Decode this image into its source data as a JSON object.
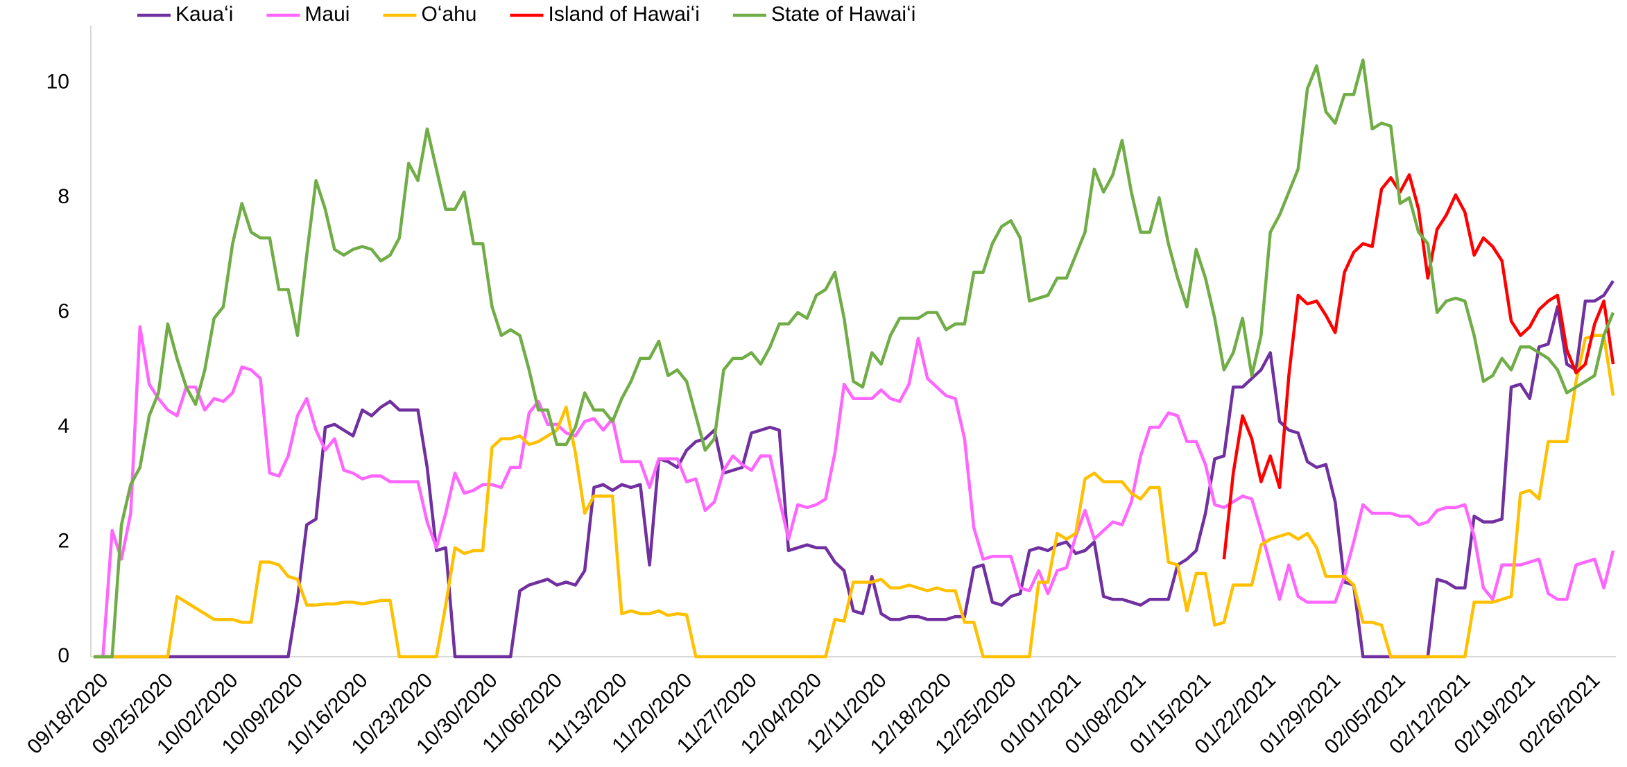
{
  "chart_data": {
    "type": "line",
    "categories": [
      "09/18/2020",
      null,
      null,
      null,
      null,
      null,
      null,
      "09/25/2020",
      null,
      null,
      null,
      null,
      null,
      null,
      "10/02/2020",
      null,
      null,
      null,
      null,
      null,
      null,
      "10/09/2020",
      null,
      null,
      null,
      null,
      null,
      null,
      "10/16/2020",
      null,
      null,
      null,
      null,
      null,
      null,
      "10/23/2020",
      null,
      null,
      null,
      null,
      null,
      null,
      "10/30/2020",
      null,
      null,
      null,
      null,
      null,
      null,
      "11/06/2020",
      null,
      null,
      null,
      null,
      null,
      null,
      "11/13/2020",
      null,
      null,
      null,
      null,
      null,
      null,
      "11/20/2020",
      null,
      null,
      null,
      null,
      null,
      null,
      "11/27/2020",
      null,
      null,
      null,
      null,
      null,
      null,
      "12/04/2020",
      null,
      null,
      null,
      null,
      null,
      null,
      "12/11/2020",
      null,
      null,
      null,
      null,
      null,
      null,
      "12/18/2020",
      null,
      null,
      null,
      null,
      null,
      null,
      "12/25/2020",
      null,
      null,
      null,
      null,
      null,
      null,
      "01/01/2021",
      null,
      null,
      null,
      null,
      null,
      null,
      "01/08/2021",
      null,
      null,
      null,
      null,
      null,
      null,
      "01/15/2021",
      null,
      null,
      null,
      null,
      null,
      null,
      "01/22/2021",
      null,
      null,
      null,
      null,
      null,
      null,
      "01/29/2021",
      null,
      null,
      null,
      null,
      null,
      null,
      "02/05/2021",
      null,
      null,
      null,
      null,
      null,
      null,
      "02/12/2021",
      null,
      null,
      null,
      null,
      null,
      null,
      "02/19/2021",
      null,
      null,
      null,
      null,
      null,
      null,
      "02/26/2021",
      null,
      null,
      null
    ],
    "series": [
      {
        "name": "Kauaʻi",
        "color": "#7030a0",
        "values": [
          0,
          0,
          0,
          0,
          0,
          0,
          0,
          0,
          0,
          0,
          0,
          0,
          0,
          0,
          0,
          0,
          0,
          0,
          0,
          0,
          0,
          0,
          1.0,
          2.3,
          2.4,
          4.0,
          4.05,
          3.95,
          3.85,
          4.3,
          4.2,
          4.35,
          4.45,
          4.3,
          4.3,
          4.3,
          3.3,
          1.85,
          1.9,
          0,
          0,
          0,
          0,
          0,
          0,
          0,
          1.15,
          1.25,
          1.3,
          1.35,
          1.25,
          1.3,
          1.25,
          1.5,
          2.95,
          3.0,
          2.9,
          3.0,
          2.95,
          3.0,
          1.6,
          3.45,
          3.4,
          3.3,
          3.6,
          3.75,
          3.8,
          3.95,
          3.2,
          3.25,
          3.3,
          3.9,
          3.95,
          4.0,
          3.95,
          1.85,
          1.9,
          1.95,
          1.9,
          1.9,
          1.65,
          1.5,
          0.8,
          0.75,
          1.4,
          0.75,
          0.65,
          0.65,
          0.7,
          0.7,
          0.65,
          0.65,
          0.65,
          0.7,
          0.7,
          1.55,
          1.6,
          0.95,
          0.9,
          1.05,
          1.1,
          1.85,
          1.9,
          1.85,
          1.95,
          2.0,
          1.8,
          1.85,
          2.0,
          1.05,
          1.0,
          1.0,
          0.95,
          0.9,
          1.0,
          1.0,
          1.0,
          1.6,
          1.7,
          1.85,
          2.5,
          3.45,
          3.5,
          4.7,
          4.7,
          4.85,
          5.0,
          5.3,
          4.1,
          3.95,
          3.9,
          3.4,
          3.3,
          3.35,
          2.7,
          1.3,
          1.25,
          0,
          0,
          0,
          0,
          0,
          0,
          0,
          0,
          1.35,
          1.3,
          1.2,
          1.2,
          2.45,
          2.35,
          2.35,
          2.4,
          4.7,
          4.75,
          4.5,
          5.4,
          5.45,
          6.1,
          5.1,
          5.0,
          6.2,
          6.2,
          6.3,
          6.55
        ]
      },
      {
        "name": "Maui",
        "color": "#ff66ff",
        "values": [
          0,
          0,
          2.2,
          1.7,
          2.5,
          5.75,
          4.75,
          4.5,
          4.3,
          4.2,
          4.7,
          4.7,
          4.3,
          4.5,
          4.45,
          4.6,
          5.05,
          5.0,
          4.85,
          3.2,
          3.15,
          3.5,
          4.2,
          4.5,
          3.95,
          3.6,
          3.8,
          3.25,
          3.2,
          3.1,
          3.15,
          3.15,
          3.05,
          3.05,
          3.05,
          3.05,
          2.35,
          1.9,
          2.5,
          3.2,
          2.85,
          2.9,
          3.0,
          3.0,
          2.95,
          3.3,
          3.3,
          4.25,
          4.45,
          4.05,
          4.05,
          3.9,
          3.85,
          4.1,
          4.15,
          3.95,
          4.15,
          3.4,
          3.4,
          3.4,
          2.95,
          3.45,
          3.45,
          3.45,
          3.05,
          3.1,
          2.55,
          2.7,
          3.25,
          3.5,
          3.35,
          3.25,
          3.5,
          3.5,
          2.75,
          2.05,
          2.65,
          2.6,
          2.65,
          2.75,
          3.55,
          4.75,
          4.5,
          4.5,
          4.5,
          4.65,
          4.5,
          4.45,
          4.75,
          5.55,
          4.85,
          4.7,
          4.55,
          4.5,
          3.8,
          2.25,
          1.7,
          1.75,
          1.75,
          1.75,
          1.2,
          1.15,
          1.5,
          1.1,
          1.5,
          1.55,
          2.1,
          2.55,
          2.05,
          2.2,
          2.35,
          2.3,
          2.7,
          3.5,
          4.0,
          4.0,
          4.25,
          4.2,
          3.75,
          3.75,
          3.35,
          2.65,
          2.6,
          2.7,
          2.8,
          2.75,
          2.2,
          1.6,
          1.0,
          1.6,
          1.05,
          0.95,
          0.95,
          0.95,
          0.95,
          1.4,
          2.0,
          2.65,
          2.5,
          2.5,
          2.5,
          2.45,
          2.45,
          2.3,
          2.35,
          2.55,
          2.6,
          2.6,
          2.65,
          2.1,
          1.2,
          1.0,
          1.6,
          1.6,
          1.6,
          1.65,
          1.7,
          1.1,
          1.0,
          1.0,
          1.6,
          1.65,
          1.7,
          1.2,
          1.85
        ]
      },
      {
        "name": "Oʻahu",
        "color": "#ffc000",
        "values": [
          0,
          0,
          0,
          0,
          0,
          0,
          0,
          0,
          0,
          1.05,
          0.95,
          0.85,
          0.75,
          0.65,
          0.65,
          0.65,
          0.6,
          0.6,
          1.65,
          1.65,
          1.6,
          1.4,
          1.35,
          0.9,
          0.9,
          0.92,
          0.92,
          0.95,
          0.95,
          0.92,
          0.95,
          0.98,
          0.98,
          0,
          0,
          0,
          0,
          0,
          0.9,
          1.9,
          1.8,
          1.85,
          1.85,
          3.65,
          3.8,
          3.8,
          3.85,
          3.7,
          3.75,
          3.85,
          3.95,
          4.35,
          3.55,
          2.5,
          2.8,
          2.8,
          2.8,
          0.75,
          0.8,
          0.75,
          0.75,
          0.8,
          0.72,
          0.75,
          0.73,
          0,
          0,
          0,
          0,
          0,
          0,
          0,
          0,
          0,
          0,
          0,
          0,
          0,
          0,
          0,
          0.65,
          0.62,
          1.3,
          1.3,
          1.3,
          1.35,
          1.2,
          1.2,
          1.25,
          1.2,
          1.15,
          1.2,
          1.15,
          1.15,
          0.6,
          0.6,
          0,
          0,
          0,
          0,
          0,
          0,
          1.3,
          1.3,
          2.15,
          2.05,
          2.15,
          3.1,
          3.2,
          3.05,
          3.05,
          3.05,
          2.85,
          2.75,
          2.95,
          2.95,
          1.65,
          1.6,
          0.8,
          1.45,
          1.45,
          0.55,
          0.6,
          1.25,
          1.25,
          1.25,
          1.95,
          2.05,
          2.1,
          2.15,
          2.05,
          2.15,
          1.9,
          1.4,
          1.4,
          1.4,
          1.25,
          0.6,
          0.6,
          0.55,
          0,
          0,
          0,
          0,
          0,
          0,
          0,
          0,
          0,
          0.95,
          0.95,
          0.95,
          1.0,
          1.05,
          2.85,
          2.9,
          2.75,
          3.75,
          3.75,
          3.75,
          4.8,
          5.55,
          5.6,
          5.6,
          4.55
        ]
      },
      {
        "name": "Island of Hawaiʻi",
        "color": "#ff0000",
        "values": [
          null,
          null,
          null,
          null,
          null,
          null,
          null,
          null,
          null,
          null,
          null,
          null,
          null,
          null,
          null,
          null,
          null,
          null,
          null,
          null,
          null,
          null,
          null,
          null,
          null,
          null,
          null,
          null,
          null,
          null,
          null,
          null,
          null,
          null,
          null,
          null,
          null,
          null,
          null,
          null,
          null,
          null,
          null,
          null,
          null,
          null,
          null,
          null,
          null,
          null,
          null,
          null,
          null,
          null,
          null,
          null,
          null,
          null,
          null,
          null,
          null,
          null,
          null,
          null,
          null,
          null,
          null,
          null,
          null,
          null,
          null,
          null,
          null,
          null,
          null,
          null,
          null,
          null,
          null,
          null,
          null,
          null,
          null,
          null,
          null,
          null,
          null,
          null,
          null,
          null,
          null,
          null,
          null,
          null,
          null,
          null,
          null,
          null,
          null,
          null,
          null,
          null,
          null,
          null,
          null,
          null,
          null,
          null,
          null,
          null,
          null,
          null,
          null,
          null,
          null,
          null,
          null,
          null,
          null,
          null,
          null,
          null,
          1.7,
          3.2,
          4.2,
          3.8,
          3.05,
          3.5,
          2.95,
          4.9,
          6.3,
          6.15,
          6.2,
          5.95,
          5.65,
          6.7,
          7.05,
          7.2,
          7.15,
          8.15,
          8.35,
          8.1,
          8.4,
          7.8,
          6.6,
          7.45,
          7.7,
          8.05,
          7.75,
          7.0,
          7.3,
          7.15,
          6.9,
          5.85,
          5.6,
          5.75,
          6.05,
          6.2,
          6.3,
          5.35,
          4.95,
          5.1,
          5.8,
          6.2,
          5.1
        ]
      },
      {
        "name": "State of Hawaiʻi",
        "color": "#70ad47",
        "values": [
          0,
          0,
          0,
          2.3,
          3.0,
          3.3,
          4.2,
          4.6,
          5.8,
          5.2,
          4.7,
          4.4,
          5.0,
          5.9,
          6.1,
          7.2,
          7.9,
          7.4,
          7.3,
          7.3,
          6.4,
          6.4,
          5.6,
          7.0,
          8.3,
          7.8,
          7.1,
          7.0,
          7.1,
          7.15,
          7.1,
          6.9,
          7.0,
          7.3,
          8.6,
          8.3,
          9.2,
          8.5,
          7.8,
          7.8,
          8.1,
          7.2,
          7.2,
          6.1,
          5.6,
          5.7,
          5.6,
          5.0,
          4.3,
          4.3,
          3.7,
          3.7,
          4.0,
          4.6,
          4.3,
          4.3,
          4.1,
          4.5,
          4.8,
          5.2,
          5.2,
          5.5,
          4.9,
          5.0,
          4.8,
          4.2,
          3.6,
          3.8,
          5.0,
          5.2,
          5.2,
          5.3,
          5.1,
          5.4,
          5.8,
          5.8,
          6.0,
          5.9,
          6.3,
          6.4,
          6.7,
          5.9,
          4.8,
          4.7,
          5.3,
          5.1,
          5.6,
          5.9,
          5.9,
          5.9,
          6.0,
          6.0,
          5.7,
          5.8,
          5.8,
          6.7,
          6.7,
          7.2,
          7.5,
          7.6,
          7.3,
          6.2,
          6.25,
          6.3,
          6.6,
          6.6,
          7.0,
          7.4,
          8.5,
          8.1,
          8.4,
          9.0,
          8.1,
          7.4,
          7.4,
          8.0,
          7.2,
          6.6,
          6.1,
          7.1,
          6.6,
          5.9,
          5.0,
          5.3,
          5.9,
          4.9,
          5.6,
          7.4,
          7.7,
          8.1,
          8.5,
          9.9,
          10.3,
          9.5,
          9.3,
          9.8,
          9.8,
          10.4,
          9.2,
          9.3,
          9.25,
          7.9,
          8.0,
          7.4,
          7.2,
          6.0,
          6.2,
          6.25,
          6.2,
          5.6,
          4.8,
          4.9,
          5.2,
          5.0,
          5.4,
          5.4,
          5.3,
          5.2,
          5.0,
          4.6,
          4.7,
          4.8,
          4.9,
          5.6,
          6.0
        ]
      }
    ],
    "ylim": [
      0,
      11
    ],
    "yticks": [
      0,
      2,
      4,
      6,
      8,
      10
    ],
    "grid": false,
    "legend": "top"
  }
}
